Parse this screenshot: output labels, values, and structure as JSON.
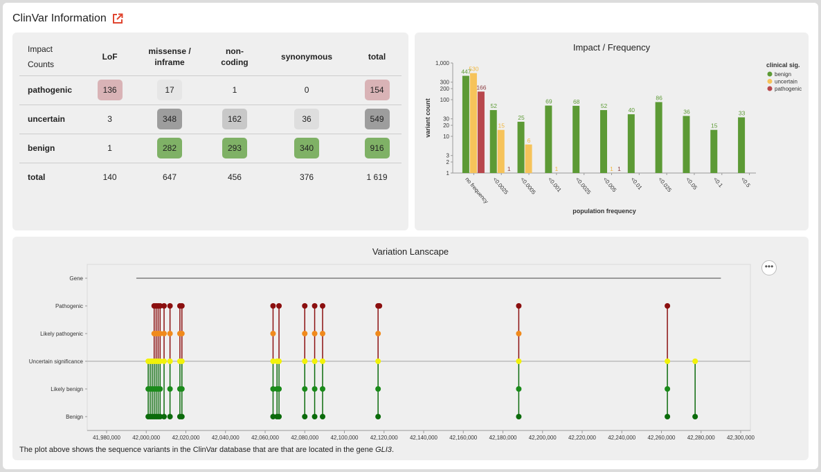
{
  "header": {
    "title": "ClinVar Information",
    "link_icon": "external-link-icon"
  },
  "impact_table": {
    "corner_label_1": "Impact",
    "corner_label_2": "Counts",
    "columns": [
      {
        "line1": "LoF",
        "line2": ""
      },
      {
        "line1": "missense /",
        "line2": "inframe"
      },
      {
        "line1": "non-",
        "line2": "coding"
      },
      {
        "line1": "synonymous",
        "line2": ""
      },
      {
        "line1": "total",
        "line2": ""
      }
    ],
    "rows": [
      {
        "label": "pathogenic",
        "cells": [
          {
            "value": "136",
            "tone": "red"
          },
          {
            "value": "17",
            "tone": "light"
          },
          {
            "value": "1",
            "tone": "plain"
          },
          {
            "value": "0",
            "tone": "plain"
          },
          {
            "value": "154",
            "tone": "red"
          }
        ]
      },
      {
        "label": "uncertain",
        "cells": [
          {
            "value": "3",
            "tone": "plain"
          },
          {
            "value": "348",
            "tone": "dark"
          },
          {
            "value": "162",
            "tone": "mid"
          },
          {
            "value": "36",
            "tone": "lite2"
          },
          {
            "value": "549",
            "tone": "dark"
          }
        ]
      },
      {
        "label": "benign",
        "cells": [
          {
            "value": "1",
            "tone": "plain"
          },
          {
            "value": "282",
            "tone": "green"
          },
          {
            "value": "293",
            "tone": "green"
          },
          {
            "value": "340",
            "tone": "green"
          },
          {
            "value": "916",
            "tone": "green"
          }
        ]
      },
      {
        "label": "total",
        "cells": [
          {
            "value": "140",
            "tone": "plain"
          },
          {
            "value": "647",
            "tone": "plain"
          },
          {
            "value": "456",
            "tone": "plain"
          },
          {
            "value": "376",
            "tone": "plain"
          },
          {
            "value": "1 619",
            "tone": "plain"
          }
        ]
      }
    ]
  },
  "chart_data": [
    {
      "type": "bar",
      "title": "Impact / Frequency",
      "xlabel": "population frequency",
      "ylabel": "variant count",
      "yscale": "log",
      "ylim": [
        1,
        1000
      ],
      "yticks": [
        "1",
        "2",
        "3",
        "10",
        "20",
        "30",
        "100",
        "200",
        "300",
        "1,000"
      ],
      "legend_title": "clinical sig.",
      "legend_position": "right",
      "categories": [
        "no frequency",
        "<0.0025",
        "<0.0005",
        "<0.001",
        "<0.0025",
        "<0.005",
        "<0.01",
        "<0.025",
        "<0.05",
        "<0.1",
        "<0.5"
      ],
      "series": [
        {
          "name": "benign",
          "color": "#5c9a35",
          "values": [
            447,
            52,
            25,
            69,
            68,
            52,
            40,
            86,
            36,
            15,
            33
          ],
          "labels": [
            "447",
            "52",
            "25",
            "69",
            "68",
            "52",
            "40",
            "86",
            "36",
            "15",
            "33"
          ]
        },
        {
          "name": "uncertain",
          "color": "#f6c35a",
          "values": [
            530,
            15,
            6,
            1,
            null,
            1,
            null,
            null,
            null,
            null,
            null
          ],
          "labels": [
            "530",
            "15",
            "6",
            "1",
            "",
            "1",
            "",
            "",
            "",
            "",
            ""
          ]
        },
        {
          "name": "pathogenic",
          "color": "#b8474c",
          "values": [
            166,
            1,
            null,
            null,
            null,
            1,
            null,
            null,
            null,
            null,
            null
          ],
          "labels": [
            "166",
            "1",
            "",
            "",
            "",
            "1",
            "",
            "",
            "",
            "",
            ""
          ]
        }
      ]
    },
    {
      "type": "scatter",
      "title": "Variation Lanscape",
      "xlim": [
        41980000,
        42300000
      ],
      "xticks": [
        "41,980,000",
        "42,000,000",
        "42,020,000",
        "42,040,000",
        "42,060,000",
        "42,080,000",
        "42,100,000",
        "42,120,000",
        "42,140,000",
        "42,160,000",
        "42,180,000",
        "42,200,000",
        "42,220,000",
        "42,240,000",
        "42,260,000",
        "42,280,000",
        "42,300,000"
      ],
      "categories": [
        "Gene",
        "Pathogenic",
        "Likely pathogenic",
        "Uncertain significance",
        "Likely benign",
        "Benign"
      ],
      "gene_span": [
        41995000,
        42290000
      ],
      "variants": [
        {
          "pos": 42001000,
          "levels": [
            "Benign",
            "Likely benign",
            "Uncertain significance"
          ]
        },
        {
          "pos": 42002000,
          "levels": [
            "Benign",
            "Likely benign",
            "Uncertain significance"
          ]
        },
        {
          "pos": 42003000,
          "levels": [
            "Benign",
            "Likely benign",
            "Uncertain significance"
          ]
        },
        {
          "pos": 42004000,
          "levels": [
            "Benign",
            "Likely benign",
            "Uncertain significance",
            "Likely pathogenic",
            "Pathogenic"
          ]
        },
        {
          "pos": 42005000,
          "levels": [
            "Benign",
            "Likely benign",
            "Uncertain significance",
            "Likely pathogenic",
            "Pathogenic"
          ]
        },
        {
          "pos": 42006000,
          "levels": [
            "Benign",
            "Likely benign",
            "Uncertain significance",
            "Likely pathogenic",
            "Pathogenic"
          ]
        },
        {
          "pos": 42007000,
          "levels": [
            "Benign",
            "Likely benign",
            "Uncertain significance",
            "Likely pathogenic",
            "Pathogenic"
          ]
        },
        {
          "pos": 42009000,
          "levels": [
            "Benign",
            "Uncertain significance",
            "Likely pathogenic",
            "Pathogenic"
          ]
        },
        {
          "pos": 42012000,
          "levels": [
            "Benign",
            "Likely benign",
            "Uncertain significance",
            "Likely pathogenic",
            "Pathogenic"
          ]
        },
        {
          "pos": 42017000,
          "levels": [
            "Benign",
            "Likely benign",
            "Uncertain significance",
            "Likely pathogenic",
            "Pathogenic"
          ]
        },
        {
          "pos": 42018000,
          "levels": [
            "Benign",
            "Likely benign",
            "Uncertain significance",
            "Likely pathogenic",
            "Pathogenic"
          ]
        },
        {
          "pos": 42064000,
          "levels": [
            "Benign",
            "Likely benign",
            "Uncertain significance",
            "Likely pathogenic",
            "Pathogenic"
          ]
        },
        {
          "pos": 42066000,
          "levels": [
            "Benign",
            "Likely benign",
            "Uncertain significance"
          ]
        },
        {
          "pos": 42067000,
          "levels": [
            "Benign",
            "Likely benign",
            "Uncertain significance",
            "Pathogenic"
          ]
        },
        {
          "pos": 42080000,
          "levels": [
            "Benign",
            "Likely benign",
            "Uncertain significance",
            "Likely pathogenic",
            "Pathogenic"
          ]
        },
        {
          "pos": 42085000,
          "levels": [
            "Benign",
            "Likely benign",
            "Uncertain significance",
            "Likely pathogenic",
            "Pathogenic"
          ]
        },
        {
          "pos": 42089000,
          "levels": [
            "Benign",
            "Likely benign",
            "Uncertain significance",
            "Likely pathogenic",
            "Pathogenic"
          ]
        },
        {
          "pos": 42117000,
          "levels": [
            "Benign",
            "Likely benign",
            "Uncertain significance",
            "Likely pathogenic",
            "Pathogenic"
          ]
        },
        {
          "pos": 42117700,
          "levels": [
            "Pathogenic"
          ]
        },
        {
          "pos": 42188000,
          "levels": [
            "Benign",
            "Likely benign",
            "Uncertain significance",
            "Likely pathogenic",
            "Pathogenic"
          ]
        },
        {
          "pos": 42263000,
          "levels": [
            "Benign",
            "Likely benign",
            "Uncertain significance",
            "Pathogenic"
          ]
        },
        {
          "pos": 42277000,
          "levels": [
            "Benign",
            "Uncertain significance"
          ]
        }
      ]
    }
  ],
  "landscape": {
    "caption_prefix": "The plot above shows the sequence variants in the ClinVar database that are that are located in the gene ",
    "gene_name": "GLI3",
    "caption_suffix": ".",
    "menu_label": "•••"
  },
  "colors": {
    "pathogenic": "#8b0f0f",
    "likely_pathogenic": "#f08a1c",
    "uncertain": "#f2f20a",
    "likely_benign": "#1a8a1a",
    "benign": "#0b6b0b"
  }
}
